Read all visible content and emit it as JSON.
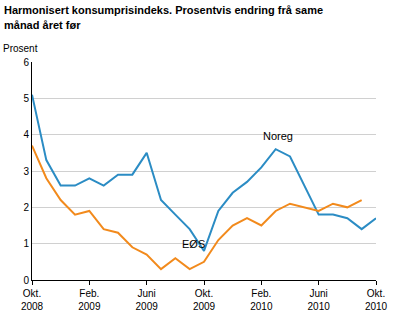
{
  "chart_data": {
    "type": "line",
    "title": "Harmonisert konsumprisindeks. Prosentvis endring frå same\nmånad året før",
    "y_label": "Prosent",
    "categories": [
      "Okt.\n2008",
      null,
      null,
      null,
      "Feb.\n2009",
      null,
      null,
      null,
      "Juni\n2009",
      null,
      null,
      null,
      "Okt.\n2009",
      null,
      null,
      null,
      "Feb.\n2010",
      null,
      null,
      null,
      "Juni\n2010",
      null,
      null,
      null,
      "Okt.\n2010"
    ],
    "series": [
      {
        "name": "Noreg",
        "color": "#2b8cc4",
        "values": [
          5.1,
          3.3,
          2.6,
          2.6,
          2.8,
          2.6,
          2.9,
          2.9,
          3.5,
          2.2,
          1.8,
          1.4,
          0.8,
          1.9,
          2.4,
          2.7,
          3.1,
          3.6,
          3.4,
          2.6,
          1.8,
          1.8,
          1.7,
          1.4,
          1.7
        ]
      },
      {
        "name": "EØS",
        "color": "#f28a1c",
        "values": [
          3.7,
          2.8,
          2.2,
          1.8,
          1.9,
          1.4,
          1.3,
          0.9,
          0.7,
          0.3,
          0.6,
          0.3,
          0.5,
          1.1,
          1.5,
          1.7,
          1.5,
          1.9,
          2.1,
          2.0,
          1.9,
          2.1,
          2.0,
          2.2,
          null
        ]
      }
    ],
    "ylim": [
      0,
      6
    ],
    "yticks": [
      0,
      1,
      2,
      3,
      4,
      5,
      6
    ],
    "grid": true
  }
}
